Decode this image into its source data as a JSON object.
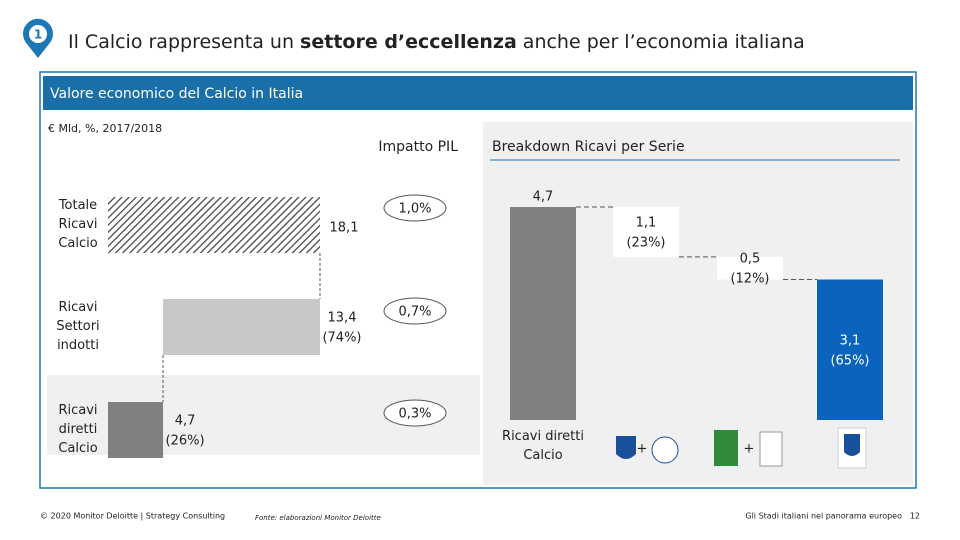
{
  "header": {
    "number": "1",
    "title_parts": [
      "Il Calcio rappresenta un ",
      "settore d’eccellenza",
      " anche per l’economia italiana"
    ]
  },
  "banner": "Valore economico del Calcio in Italia",
  "unit_note": "€ Mld, %, 2017/2018",
  "chart_data": [
    {
      "type": "hwaterfall",
      "title": "Impatto PIL",
      "categories": [
        "Totale Ricavi Calcio",
        "Ricavi Settori indotti",
        "Ricavi diretti Calcio"
      ],
      "values": [
        18.1,
        13.4,
        4.7
      ],
      "value_labels": [
        "18,1",
        "13,4",
        "4,7"
      ],
      "shares": [
        null,
        74,
        26
      ],
      "share_labels": [
        null,
        "(74%)",
        "(26%)"
      ],
      "colors": [
        "#555555",
        "#c8c8c8",
        "#808080"
      ],
      "xlim": [
        0,
        18.1
      ],
      "pil_values": [
        1.0,
        0.7,
        0.3
      ],
      "pil_labels": [
        "1,0%",
        "0,7%",
        "0,3%"
      ]
    },
    {
      "type": "waterfall",
      "title": "Breakdown Ricavi per Serie",
      "categories": [
        "Ricavi diretti Calcio",
        null,
        null,
        null
      ],
      "values": [
        4.7,
        1.1,
        0.5,
        3.1
      ],
      "value_labels": [
        "4,7",
        "1,1",
        "0,5",
        "3,1"
      ],
      "shares": [
        null,
        23,
        12,
        65
      ],
      "share_labels": [
        null,
        "(23%)",
        "(12%)",
        "(65%)"
      ],
      "colors": [
        "#808080",
        "#ffffff",
        "#ffffff",
        "#0a63bd"
      ],
      "ylim": [
        0,
        4.7
      ],
      "signs": [
        "+",
        "+"
      ]
    }
  ],
  "footer": {
    "left": "© 2020 Monitor Deloitte | Strategy Consulting",
    "source": "Fonte: elaborazioni Monitor Deloitte",
    "right": "Gli Stadi italiani nel panorama europeo",
    "page": "12"
  }
}
